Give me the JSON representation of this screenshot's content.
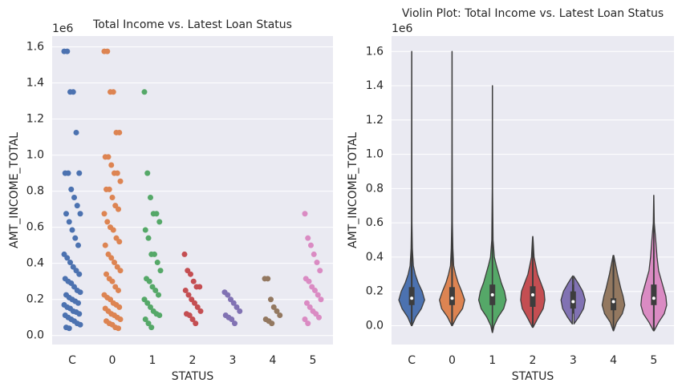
{
  "chart_data": [
    {
      "type": "strip",
      "title": "Total Income vs. Latest Loan Status",
      "xlabel": "STATUS",
      "ylabel": "AMT_INCOME_TOTAL",
      "y_offset_label": "1e6",
      "categories": [
        "C",
        "0",
        "1",
        "2",
        "3",
        "4",
        "5"
      ],
      "ylim": [
        -0.05,
        1.66
      ],
      "yticks": [
        {
          "value": 0,
          "label": "0.0"
        },
        0.2,
        0.4,
        0.6,
        0.8,
        {
          "value": 1,
          "label": "1.0"
        },
        1.2,
        1.4,
        1.6
      ],
      "grid": true,
      "strips": [
        {
          "color": "#4c72b0",
          "values": [
            1.575,
            1.575,
            1.35,
            1.35,
            1.125,
            0.9,
            0.9,
            0.9,
            0.81,
            0.765,
            0.72,
            0.675,
            0.675,
            0.63,
            0.585,
            0.54,
            0.5,
            0.45,
            0.43,
            0.405,
            0.38,
            0.36,
            0.34,
            0.315,
            0.3,
            0.29,
            0.27,
            0.25,
            0.24,
            0.225,
            0.21,
            0.2,
            0.19,
            0.18,
            0.17,
            0.157,
            0.15,
            0.135,
            0.13,
            0.12,
            0.112,
            0.1,
            0.09,
            0.08,
            0.067,
            0.06,
            0.045,
            0.04
          ]
        },
        {
          "color": "#dd8452",
          "values": [
            1.575,
            1.575,
            1.35,
            1.35,
            1.125,
            1.125,
            0.99,
            0.99,
            0.945,
            0.9,
            0.9,
            0.855,
            0.81,
            0.81,
            0.765,
            0.72,
            0.7,
            0.675,
            0.63,
            0.6,
            0.585,
            0.54,
            0.52,
            0.5,
            0.45,
            0.43,
            0.405,
            0.38,
            0.36,
            0.34,
            0.315,
            0.3,
            0.27,
            0.25,
            0.225,
            0.21,
            0.2,
            0.18,
            0.17,
            0.157,
            0.15,
            0.135,
            0.12,
            0.112,
            0.1,
            0.09,
            0.08,
            0.067,
            0.06,
            0.045,
            0.04
          ]
        },
        {
          "color": "#55a868",
          "values": [
            1.35,
            0.9,
            0.765,
            0.675,
            0.675,
            0.63,
            0.585,
            0.54,
            0.45,
            0.45,
            0.405,
            0.36,
            0.315,
            0.3,
            0.27,
            0.25,
            0.225,
            0.2,
            0.18,
            0.157,
            0.135,
            0.12,
            0.112,
            0.09,
            0.067,
            0.045
          ]
        },
        {
          "color": "#c44e52",
          "values": [
            0.45,
            0.36,
            0.34,
            0.3,
            0.27,
            0.27,
            0.25,
            0.225,
            0.2,
            0.18,
            0.157,
            0.135,
            0.12,
            0.112,
            0.09,
            0.067
          ]
        },
        {
          "color": "#8172b3",
          "values": [
            0.24,
            0.225,
            0.2,
            0.18,
            0.157,
            0.135,
            0.112,
            0.1,
            0.09,
            0.067
          ]
        },
        {
          "color": "#937860",
          "values": [
            0.315,
            0.315,
            0.2,
            0.157,
            0.135,
            0.112,
            0.09,
            0.08,
            0.067
          ]
        },
        {
          "color": "#da8bc3",
          "values": [
            0.675,
            0.54,
            0.5,
            0.45,
            0.405,
            0.36,
            0.315,
            0.3,
            0.27,
            0.25,
            0.225,
            0.2,
            0.18,
            0.157,
            0.135,
            0.12,
            0.1,
            0.09,
            0.067
          ]
        }
      ]
    },
    {
      "type": "violin",
      "title": "Violin Plot: Total Income vs. Latest Loan Status",
      "xlabel": "STATUS",
      "ylabel": "AMT_INCOME_TOTAL",
      "y_offset_label": "1e6",
      "categories": [
        "C",
        "0",
        "1",
        "2",
        "3",
        "4",
        "5"
      ],
      "ylim": [
        -0.11,
        1.69
      ],
      "yticks": [
        {
          "value": 0,
          "label": "0.0"
        },
        0.2,
        0.4,
        0.6,
        0.8,
        {
          "value": 1,
          "label": "1.0"
        },
        1.2,
        1.4,
        1.6
      ],
      "grid": true,
      "violins": [
        {
          "color": "#4c72b0",
          "kde_y": [
            0,
            0.05,
            0.1,
            0.15,
            0.2,
            0.25,
            0.3,
            0.35,
            0.45,
            0.6,
            1.0,
            1.6
          ],
          "kde_density": [
            0.02,
            0.25,
            0.6,
            0.8,
            0.65,
            0.4,
            0.22,
            0.1,
            0.04,
            0.015,
            0.008,
            0.004
          ],
          "q1": 0.12,
          "median": 0.16,
          "q3": 0.225,
          "whisker_low": 0.03,
          "whisker_high": 0.36
        },
        {
          "color": "#dd8452",
          "kde_y": [
            0,
            0.05,
            0.1,
            0.15,
            0.2,
            0.25,
            0.3,
            0.35,
            0.45,
            0.6,
            1.0,
            1.6
          ],
          "kde_density": [
            0.02,
            0.28,
            0.65,
            0.78,
            0.6,
            0.38,
            0.22,
            0.1,
            0.05,
            0.02,
            0.01,
            0.004
          ],
          "q1": 0.12,
          "median": 0.16,
          "q3": 0.225,
          "whisker_low": 0.03,
          "whisker_high": 0.36
        },
        {
          "color": "#55a868",
          "kde_y": [
            -0.04,
            0,
            0.05,
            0.1,
            0.15,
            0.2,
            0.25,
            0.3,
            0.35,
            0.4,
            0.5,
            0.8,
            1.4
          ],
          "kde_density": [
            0.01,
            0.1,
            0.35,
            0.7,
            0.85,
            0.75,
            0.55,
            0.4,
            0.25,
            0.12,
            0.04,
            0.01,
            0.004
          ],
          "q1": 0.12,
          "median": 0.18,
          "q3": 0.24,
          "whisker_low": 0.03,
          "whisker_high": 0.4
        },
        {
          "color": "#c44e52",
          "kde_y": [
            -0.01,
            0.05,
            0.1,
            0.15,
            0.2,
            0.25,
            0.3,
            0.4,
            0.52
          ],
          "kde_density": [
            0.02,
            0.35,
            0.65,
            0.75,
            0.7,
            0.5,
            0.3,
            0.08,
            0.01
          ],
          "q1": 0.11,
          "median": 0.18,
          "q3": 0.23,
          "whisker_low": 0.06,
          "whisker_high": 0.36
        },
        {
          "color": "#8172b3",
          "kde_y": [
            0.01,
            0.05,
            0.1,
            0.15,
            0.2,
            0.25,
            0.29
          ],
          "kde_density": [
            0.05,
            0.35,
            0.65,
            0.75,
            0.6,
            0.3,
            0.03
          ],
          "q1": 0.1,
          "median": 0.14,
          "q3": 0.2,
          "whisker_low": 0.07,
          "whisker_high": 0.24
        },
        {
          "color": "#937860",
          "kde_y": [
            -0.03,
            0.02,
            0.07,
            0.12,
            0.17,
            0.22,
            0.3,
            0.41
          ],
          "kde_density": [
            0.01,
            0.2,
            0.55,
            0.7,
            0.6,
            0.45,
            0.25,
            0.02
          ],
          "q1": 0.09,
          "median": 0.14,
          "q3": 0.16,
          "whisker_low": 0.07,
          "whisker_high": 0.32
        },
        {
          "color": "#da8bc3",
          "kde_y": [
            -0.03,
            0.02,
            0.07,
            0.12,
            0.17,
            0.22,
            0.27,
            0.32,
            0.4,
            0.5,
            0.6,
            0.76
          ],
          "kde_density": [
            0.02,
            0.3,
            0.65,
            0.8,
            0.75,
            0.6,
            0.45,
            0.3,
            0.2,
            0.12,
            0.03,
            0.005
          ],
          "q1": 0.12,
          "median": 0.16,
          "q3": 0.24,
          "whisker_low": 0.05,
          "whisker_high": 0.45
        }
      ]
    }
  ]
}
